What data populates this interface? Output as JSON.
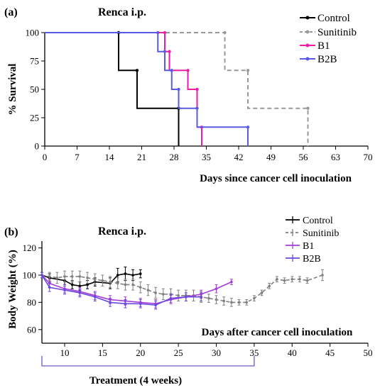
{
  "chart_data": [
    {
      "panel_label": "(a)",
      "type": "line",
      "step": true,
      "title": "Renca i.p.",
      "xlabel": "Days since cancer cell inoculation",
      "ylabel": "% Survival",
      "xlim": [
        0,
        70
      ],
      "ylim": [
        0,
        100
      ],
      "xticks": [
        "0",
        "7",
        "14",
        "21",
        "28",
        "35",
        "42",
        "49",
        "56",
        "63",
        "70"
      ],
      "yticks": [
        "0",
        "25",
        "50",
        "75",
        "100"
      ],
      "legend_position": "top-right",
      "series": [
        {
          "name": "Control",
          "color": "#000000",
          "dashed": false,
          "x": [
            0,
            16,
            20,
            29
          ],
          "y": [
            100,
            66.7,
            33.3,
            0
          ]
        },
        {
          "name": "Sunitinib",
          "color": "#999999",
          "dashed": true,
          "x": [
            0,
            39,
            44,
            57
          ],
          "y": [
            100,
            66.7,
            33.3,
            0
          ]
        },
        {
          "name": "B1",
          "color": "#ee1ca8",
          "dashed": false,
          "x": [
            0,
            26,
            27,
            31,
            33,
            34
          ],
          "y": [
            100,
            83.3,
            66.7,
            50,
            16.7,
            0
          ]
        },
        {
          "name": "B2B",
          "color": "#5a5ae6",
          "dashed": false,
          "x": [
            0,
            24.5,
            26,
            27.5,
            29,
            33,
            44
          ],
          "y": [
            100,
            83.3,
            66.7,
            50,
            33.3,
            16.7,
            0
          ]
        }
      ]
    },
    {
      "panel_label": "(b)",
      "type": "line",
      "title": "Renca i.p.",
      "xlabel": "Days after cancer cell inoculation",
      "ylabel": "Body Weight (%)",
      "xlim": [
        7,
        50
      ],
      "ylim": [
        50,
        125
      ],
      "xticks": [
        "10",
        "15",
        "20",
        "25",
        "30",
        "35",
        "40",
        "45",
        "50"
      ],
      "yticks": [
        "60",
        "80",
        "100",
        "120"
      ],
      "legend_position": "top-right",
      "annotation": "Treatment (4 weeks)",
      "treatment_range": [
        7,
        35
      ],
      "series": [
        {
          "name": "Control",
          "color": "#000000",
          "dashed": false,
          "x": [
            7,
            8,
            10,
            11,
            12,
            13,
            14,
            16,
            17,
            18,
            19,
            20
          ],
          "y": [
            100,
            98,
            96,
            93,
            92,
            93,
            95,
            94,
            100,
            101,
            100,
            101
          ],
          "err": [
            2,
            3,
            3,
            3,
            3,
            3,
            3,
            4,
            5,
            5,
            4,
            3
          ]
        },
        {
          "name": "Sunitinib",
          "color": "#808080",
          "dashed": true,
          "x": [
            7,
            8,
            9,
            10,
            11,
            12,
            13,
            14,
            15,
            16,
            17,
            18,
            19,
            20,
            21,
            22,
            23,
            24,
            25,
            26,
            27,
            28,
            29,
            30,
            31,
            32,
            33,
            34,
            35,
            36,
            37,
            38,
            39,
            40,
            41,
            42,
            44
          ],
          "y": [
            100,
            99,
            98,
            99,
            99,
            99,
            98,
            97,
            96,
            95,
            94,
            93,
            93,
            91,
            89,
            87,
            86,
            86,
            85,
            85,
            85,
            84,
            83,
            82,
            81,
            80,
            80,
            80,
            83,
            87,
            92,
            97,
            96,
            97,
            97,
            96,
            100
          ],
          "err": [
            2,
            3,
            4,
            4,
            4,
            4,
            4,
            4,
            4,
            4,
            4,
            4,
            4,
            4,
            4,
            4,
            4,
            4,
            4,
            4,
            4,
            4,
            3,
            3,
            3,
            3,
            2,
            2,
            2,
            2,
            2,
            2,
            2,
            2,
            2,
            2,
            4
          ]
        },
        {
          "name": "B1",
          "color": "#a63cd8",
          "dashed": false,
          "x": [
            7,
            8,
            10,
            12,
            14,
            16,
            18,
            20,
            22,
            24,
            26,
            28,
            30,
            32
          ],
          "y": [
            100,
            94,
            90,
            88,
            85,
            82,
            81,
            80,
            79,
            82,
            84,
            86,
            90,
            95
          ],
          "err": [
            2,
            3,
            3,
            3,
            3,
            3,
            3,
            3,
            3,
            3,
            3,
            3,
            3,
            2
          ]
        },
        {
          "name": "B2B",
          "color": "#6a48e0",
          "dashed": false,
          "x": [
            7,
            8,
            10,
            12,
            14,
            16,
            18,
            20,
            22,
            24,
            26,
            28
          ],
          "y": [
            100,
            91,
            89,
            87,
            84,
            80,
            79,
            79,
            78,
            83,
            84,
            84
          ],
          "err": [
            2,
            3,
            3,
            3,
            3,
            3,
            3,
            3,
            3,
            3,
            3,
            3
          ]
        }
      ]
    }
  ]
}
